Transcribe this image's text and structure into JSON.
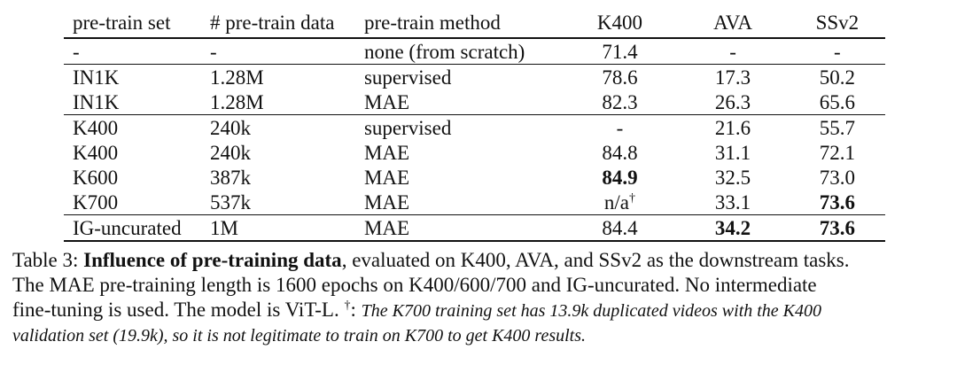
{
  "table": {
    "headers": [
      "pre-train set",
      "# pre-train data",
      "pre-train method",
      "K400",
      "AVA",
      "SSv2"
    ],
    "rows": [
      {
        "set": "-",
        "data": "-",
        "method": "none (from scratch)",
        "k400": "71.4",
        "ava": "-",
        "ssv2": "-",
        "group_start": true
      },
      {
        "set": "IN1K",
        "data": "1.28M",
        "method": "supervised",
        "k400": "78.6",
        "ava": "17.3",
        "ssv2": "50.2",
        "group_start": true
      },
      {
        "set": "IN1K",
        "data": "1.28M",
        "method": "MAE",
        "k400": "82.3",
        "ava": "26.3",
        "ssv2": "65.6"
      },
      {
        "set": "K400",
        "data": "240k",
        "method": "supervised",
        "k400": "-",
        "ava": "21.6",
        "ssv2": "55.7",
        "group_start": true
      },
      {
        "set": "K400",
        "data": "240k",
        "method": "MAE",
        "k400": "84.8",
        "ava": "31.1",
        "ssv2": "72.1"
      },
      {
        "set": "K600",
        "data": "387k",
        "method": "MAE",
        "k400": "84.9",
        "ava": "32.5",
        "ssv2": "73.0",
        "bold": [
          "k400"
        ]
      },
      {
        "set": "K700",
        "data": "537k",
        "method": "MAE",
        "k400": "n/a",
        "k400_sup": "†",
        "ava": "33.1",
        "ssv2": "73.6",
        "bold": [
          "ssv2"
        ]
      },
      {
        "set": "IG-uncurated",
        "data": "1M",
        "method": "MAE",
        "k400": "84.4",
        "ava": "34.2",
        "ssv2": "73.6",
        "bold": [
          "ava",
          "ssv2"
        ],
        "group_start": true
      }
    ]
  },
  "caption": {
    "label": "Table 3: ",
    "lead": "Influence of pre-training data",
    "line1_rest": ", evaluated on K400, AVA, and SSv2 as the downstream tasks.",
    "line2": "The MAE pre-training length is 1600 epochs on K400/600/700 and IG-uncurated. No intermediate",
    "line3_start": "fine-tuning is used. The model is ViT-L. ",
    "dagger": "†",
    "note_colon": ": ",
    "note_line1": "The K700 training set has 13.9k duplicated videos with the K400",
    "note_line2": "validation set (19.9k), so it is not legitimate to train on K700 to get K400 results."
  }
}
